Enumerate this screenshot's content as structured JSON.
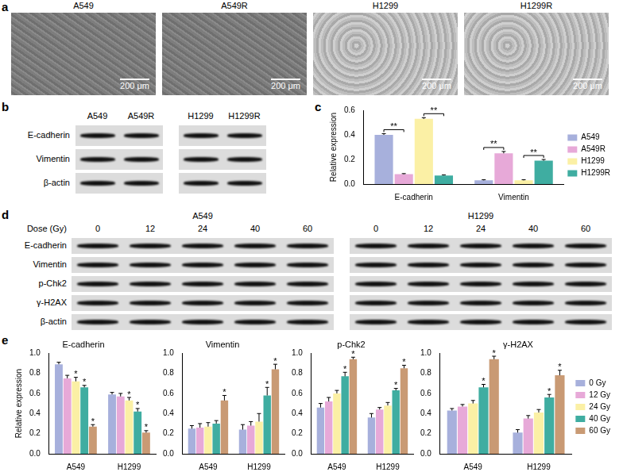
{
  "panels": [
    {
      "panel_label": "a",
      "images": [
        "A549",
        "A549R",
        "H1299",
        "H1299R"
      ],
      "scale_bar": "200 μm"
    },
    {
      "panel_label": "b",
      "groups": [
        [
          "A549",
          "A549R"
        ],
        [
          "H1299",
          "H1299R"
        ]
      ],
      "rows": [
        "E-cadherin",
        "Vimentin",
        "β-actin"
      ]
    },
    {
      "panel_label": "d",
      "dose_title": "Dose (Gy)",
      "groups": [
        {
          "name": "A549",
          "doses": [
            0,
            12,
            24,
            40,
            60
          ]
        },
        {
          "name": "H1299",
          "doses": [
            0,
            12,
            24,
            40,
            60
          ]
        }
      ],
      "rows": [
        "E-cadherin",
        "Vimentin",
        "p-Chk2",
        "γ-H2AX",
        "β-actin"
      ]
    }
  ],
  "chart_data": [
    {
      "panel_label": "c",
      "type": "bar",
      "y_label": "Relative expression",
      "categories": [
        "E-cadherin",
        "Vimentin"
      ],
      "series": [
        {
          "name": "A549",
          "color": "#a7b0dc",
          "values": [
            0.4,
            0.03
          ],
          "errors": [
            0.01,
            0.005
          ]
        },
        {
          "name": "A549R",
          "color": "#e7a9d8",
          "values": [
            0.08,
            0.25
          ],
          "errors": [
            0.005,
            0.015
          ]
        },
        {
          "name": "H1299",
          "color": "#fbf0a5",
          "values": [
            0.53,
            0.03
          ],
          "errors": [
            0.01,
            0.005
          ]
        },
        {
          "name": "H1299R",
          "color": "#3fada1",
          "values": [
            0.07,
            0.19
          ],
          "errors": [
            0.005,
            0.01
          ]
        }
      ],
      "annotations": [
        {
          "text": "**",
          "category": "E-cadherin",
          "series": [
            "A549",
            "A549R"
          ]
        },
        {
          "text": "**",
          "category": "E-cadherin",
          "series": [
            "H1299",
            "H1299R"
          ]
        },
        {
          "text": "**",
          "category": "Vimentin",
          "series": [
            "A549",
            "A549R"
          ]
        },
        {
          "text": "**",
          "category": "Vimentin",
          "series": [
            "H1299",
            "H1299R"
          ]
        }
      ],
      "ylim": [
        0,
        0.6
      ],
      "yticks": [
        {
          "value": 0,
          "label": "0.0"
        },
        0.2,
        0.4,
        0.6
      ],
      "grid": false,
      "legend": "right"
    },
    {
      "panel_label": "e",
      "type": "bar",
      "title": "E-cadherin",
      "y_label": "Relative expression",
      "categories": [
        "A549",
        "H1299"
      ],
      "series": [
        {
          "color": "#a7b0dc",
          "values": [
            0.89,
            0.59
          ],
          "errors": [
            0.02,
            0.02
          ]
        },
        {
          "color": "#e7a9d8",
          "values": [
            0.75,
            0.57
          ],
          "errors": [
            0.03,
            0.03
          ]
        },
        {
          "color": "#fbf0a5",
          "values": [
            0.72,
            0.53
          ],
          "errors": [
            0.04,
            0.03
          ],
          "significance": [
            "*",
            "*"
          ]
        },
        {
          "color": "#3fada1",
          "values": [
            0.66,
            0.42
          ],
          "errors": [
            0.02,
            0.03
          ],
          "significance": [
            "*",
            "*"
          ]
        },
        {
          "color": "#c99a74",
          "values": [
            0.27,
            0.21
          ],
          "errors": [
            0.02,
            0.02
          ],
          "significance": [
            "*",
            "*"
          ]
        }
      ],
      "ylim": [
        0,
        1
      ],
      "yticks": [
        {
          "value": 0,
          "label": "0.0"
        },
        0.2,
        0.4,
        0.6,
        0.8,
        {
          "value": 1,
          "label": "1.0"
        }
      ],
      "grid": false
    },
    {
      "type": "bar",
      "title": "Vimentin",
      "categories": [
        "A549",
        "H1299"
      ],
      "series": [
        {
          "color": "#a7b0dc",
          "values": [
            0.25,
            0.24
          ],
          "errors": [
            0.03,
            0.05
          ]
        },
        {
          "color": "#e7a9d8",
          "values": [
            0.26,
            0.28
          ],
          "errors": [
            0.04,
            0.04
          ]
        },
        {
          "color": "#fbf0a5",
          "values": [
            0.27,
            0.32
          ],
          "errors": [
            0.04,
            0.08
          ]
        },
        {
          "color": "#3fada1",
          "values": [
            0.3,
            0.58
          ],
          "errors": [
            0.03,
            0.08
          ],
          "significance": [
            null,
            "*"
          ]
        },
        {
          "color": "#c99a74",
          "values": [
            0.53,
            0.84
          ],
          "errors": [
            0.05,
            0.05
          ],
          "significance": [
            "*",
            "*"
          ]
        }
      ],
      "ylim": [
        0,
        1
      ],
      "yticks": [
        {
          "value": 0,
          "label": "0.0"
        },
        0.2,
        0.4,
        0.6,
        0.8,
        {
          "value": 1,
          "label": "1.0"
        }
      ],
      "grid": false
    },
    {
      "type": "bar",
      "title": "p-Chk2",
      "categories": [
        "A549",
        "H1299"
      ],
      "series": [
        {
          "color": "#a7b0dc",
          "values": [
            0.46,
            0.36
          ],
          "errors": [
            0.04,
            0.04
          ]
        },
        {
          "color": "#e7a9d8",
          "values": [
            0.52,
            0.44
          ],
          "errors": [
            0.04,
            0.02
          ]
        },
        {
          "color": "#fbf0a5",
          "values": [
            0.6,
            0.48
          ],
          "errors": [
            0.03,
            0.03
          ]
        },
        {
          "color": "#3fada1",
          "values": [
            0.77,
            0.63
          ],
          "errors": [
            0.04,
            0.02
          ],
          "significance": [
            "*",
            "*"
          ]
        },
        {
          "color": "#c99a74",
          "values": [
            0.94,
            0.85
          ],
          "errors": [
            0.02,
            0.03
          ],
          "significance": [
            "*",
            "*"
          ]
        }
      ],
      "ylim": [
        0,
        1
      ],
      "yticks": [
        {
          "value": 0,
          "label": "0.0"
        },
        0.2,
        0.4,
        0.6,
        0.8,
        {
          "value": 1,
          "label": "1.0"
        }
      ],
      "grid": false
    },
    {
      "type": "bar",
      "title": "γ-H2AX",
      "categories": [
        "A549",
        "H1299"
      ],
      "series": [
        {
          "name": "0 Gy",
          "color": "#a7b0dc",
          "values": [
            0.43,
            0.21
          ],
          "errors": [
            0.02,
            0.03
          ]
        },
        {
          "name": "12 Gy",
          "color": "#e7a9d8",
          "values": [
            0.47,
            0.35
          ],
          "errors": [
            0.02,
            0.03
          ]
        },
        {
          "name": "24 Gy",
          "color": "#fbf0a5",
          "values": [
            0.5,
            0.41
          ],
          "errors": [
            0.03,
            0.03
          ]
        },
        {
          "name": "40 Gy",
          "color": "#3fada1",
          "values": [
            0.66,
            0.56
          ],
          "errors": [
            0.03,
            0.03
          ],
          "significance": [
            "*",
            "*"
          ]
        },
        {
          "name": "60 Gy",
          "color": "#c99a74",
          "values": [
            0.94,
            0.78
          ],
          "errors": [
            0.03,
            0.05
          ],
          "significance": [
            "*",
            "*"
          ]
        }
      ],
      "ylim": [
        0,
        1
      ],
      "yticks": [
        {
          "value": 0,
          "label": "0.0"
        },
        0.2,
        0.4,
        0.6,
        0.8,
        {
          "value": 1,
          "label": "1.0"
        }
      ],
      "grid": false,
      "legend": "right"
    }
  ]
}
